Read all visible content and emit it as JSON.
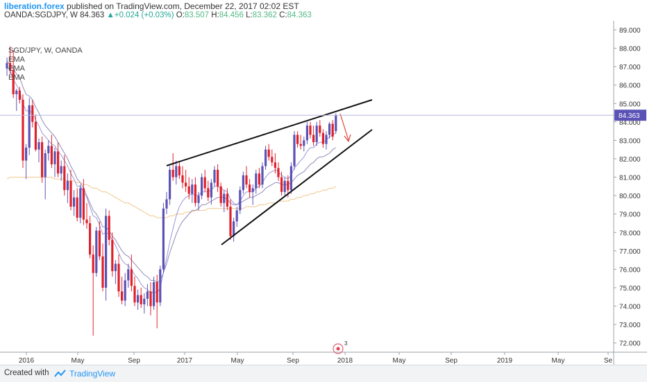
{
  "header": {
    "author": "liberation.forex",
    "published": "published on TradingView.com, December 22, 2017 02:02 EST",
    "symbol": "OANDA:SGDJPY, W",
    "last": "84.363",
    "change": "+0.024 (+0.03%)",
    "o_label": "O:",
    "o": "83.507",
    "h_label": "H:",
    "h": "84.456",
    "l_label": "L:",
    "l": "83.362",
    "c_label": "C:",
    "c": "84.363"
  },
  "legend": {
    "title": "SGD/JPY, W, OANDA",
    "ema1": "EMA",
    "ema2": "EMA",
    "ema3": "EMA"
  },
  "footer": {
    "created_with": "Created with",
    "brand": "TradingView"
  },
  "colors": {
    "up": "#5b52b5",
    "down": "#e0202a",
    "ema_fast": "#9a97d6",
    "ema_mid": "#8e8ab8",
    "ema_slow": "#f0c68a",
    "last_price_bg": "#5b52b5",
    "arrow": "#e0403a"
  },
  "chart_data": {
    "type": "candlestick",
    "yticks": [
      "72.000",
      "73.000",
      "74.000",
      "75.000",
      "76.000",
      "77.000",
      "78.000",
      "79.000",
      "80.000",
      "81.000",
      "82.000",
      "83.000",
      "84.000",
      "85.000",
      "86.000",
      "87.000",
      "88.000",
      "89.000"
    ],
    "xticks": [
      "2016",
      "May",
      "Sep",
      "2017",
      "May",
      "Sep",
      "2018",
      "May",
      "Sep",
      "2019",
      "May",
      "Se"
    ],
    "ylim": [
      71.5,
      89.3
    ],
    "last_price_label": "84.363",
    "annotation_badge": "3",
    "candles": [
      [
        86.9,
        87.5,
        86.5,
        87.2
      ],
      [
        87.2,
        88.1,
        86.6,
        86.8
      ],
      [
        86.8,
        87.9,
        85.3,
        85.5
      ],
      [
        85.5,
        85.8,
        84.6,
        85.7
      ],
      [
        85.7,
        85.9,
        85.0,
        85.2
      ],
      [
        85.2,
        85.5,
        81.5,
        81.9
      ],
      [
        81.9,
        82.8,
        80.9,
        82.6
      ],
      [
        82.6,
        85.3,
        82.2,
        84.9
      ],
      [
        84.9,
        85.2,
        83.7,
        84.0
      ],
      [
        84.0,
        84.4,
        82.4,
        82.5
      ],
      [
        82.5,
        83.1,
        81.8,
        82.9
      ],
      [
        82.9,
        83.2,
        80.7,
        81.0
      ],
      [
        81.0,
        82.5,
        79.8,
        82.3
      ],
      [
        82.3,
        83.0,
        81.9,
        82.7
      ],
      [
        82.7,
        83.3,
        81.5,
        81.7
      ],
      [
        81.7,
        82.6,
        81.0,
        82.4
      ],
      [
        82.4,
        82.9,
        81.0,
        81.2
      ],
      [
        81.2,
        81.9,
        80.8,
        81.6
      ],
      [
        81.6,
        82.2,
        80.0,
        80.3
      ],
      [
        80.3,
        81.2,
        79.6,
        80.8
      ],
      [
        80.8,
        81.4,
        79.2,
        79.4
      ],
      [
        79.4,
        80.3,
        78.9,
        79.9
      ],
      [
        79.9,
        80.4,
        78.6,
        78.8
      ],
      [
        78.8,
        80.6,
        78.5,
        80.4
      ],
      [
        80.4,
        80.9,
        78.4,
        78.7
      ],
      [
        78.7,
        79.6,
        78.2,
        78.5
      ],
      [
        78.5,
        78.9,
        76.6,
        76.8
      ],
      [
        76.8,
        77.3,
        72.4,
        75.8
      ],
      [
        75.8,
        78.3,
        75.6,
        78.1
      ],
      [
        78.1,
        78.6,
        76.5,
        76.7
      ],
      [
        76.7,
        77.4,
        74.8,
        75.0
      ],
      [
        75.0,
        79.3,
        74.3,
        78.9
      ],
      [
        78.9,
        79.2,
        77.3,
        77.6
      ],
      [
        77.6,
        78.0,
        75.6,
        75.9
      ],
      [
        75.9,
        76.5,
        75.2,
        76.3
      ],
      [
        76.3,
        76.8,
        74.5,
        74.8
      ],
      [
        74.8,
        75.6,
        74.1,
        74.3
      ],
      [
        74.3,
        75.8,
        74.0,
        75.4
      ],
      [
        75.4,
        76.3,
        75.0,
        76.0
      ],
      [
        76.0,
        76.8,
        74.8,
        75.1
      ],
      [
        75.1,
        75.6,
        74.0,
        74.2
      ],
      [
        74.2,
        74.9,
        73.8,
        74.6
      ],
      [
        74.6,
        75.0,
        73.9,
        74.1
      ],
      [
        74.1,
        74.7,
        73.6,
        74.4
      ],
      [
        74.4,
        75.2,
        74.0,
        74.8
      ],
      [
        74.8,
        75.3,
        73.5,
        74.0
      ],
      [
        74.0,
        75.6,
        73.8,
        75.3
      ],
      [
        75.3,
        75.7,
        72.8,
        74.2
      ],
      [
        74.2,
        76.2,
        74.0,
        76.0
      ],
      [
        76.0,
        79.6,
        75.8,
        79.3
      ],
      [
        79.3,
        80.2,
        79.0,
        79.8
      ],
      [
        79.8,
        81.6,
        79.5,
        81.4
      ],
      [
        81.4,
        82.3,
        80.8,
        81.0
      ],
      [
        81.0,
        81.9,
        80.6,
        81.6
      ],
      [
        81.6,
        81.8,
        80.9,
        81.1
      ],
      [
        81.1,
        81.6,
        80.4,
        80.7
      ],
      [
        80.7,
        81.4,
        80.2,
        80.5
      ],
      [
        80.5,
        81.0,
        79.8,
        80.1
      ],
      [
        80.1,
        80.9,
        79.6,
        80.6
      ],
      [
        80.6,
        81.0,
        79.4,
        79.6
      ],
      [
        79.6,
        80.2,
        79.2,
        80.0
      ],
      [
        80.0,
        81.2,
        79.8,
        81.0
      ],
      [
        81.0,
        81.4,
        80.2,
        80.4
      ],
      [
        80.4,
        80.8,
        79.7,
        79.9
      ],
      [
        79.9,
        80.9,
        79.5,
        80.7
      ],
      [
        80.7,
        81.6,
        80.5,
        81.4
      ],
      [
        81.4,
        81.7,
        80.2,
        80.5
      ],
      [
        80.5,
        80.7,
        79.4,
        79.6
      ],
      [
        79.6,
        80.3,
        79.1,
        80.1
      ],
      [
        80.1,
        80.4,
        79.2,
        79.4
      ],
      [
        79.4,
        79.8,
        77.6,
        77.8
      ],
      [
        77.8,
        78.8,
        77.5,
        78.6
      ],
      [
        78.6,
        79.4,
        78.3,
        79.2
      ],
      [
        79.2,
        80.5,
        79.0,
        80.3
      ],
      [
        80.3,
        81.3,
        80.1,
        81.1
      ],
      [
        81.1,
        81.6,
        80.4,
        80.6
      ],
      [
        80.6,
        80.9,
        79.9,
        80.2
      ],
      [
        80.2,
        80.6,
        79.5,
        80.4
      ],
      [
        80.4,
        81.4,
        80.1,
        81.2
      ],
      [
        81.2,
        81.5,
        80.4,
        80.6
      ],
      [
        80.6,
        81.8,
        80.4,
        81.6
      ],
      [
        81.6,
        82.7,
        81.4,
        82.5
      ],
      [
        82.5,
        82.8,
        81.9,
        82.1
      ],
      [
        82.1,
        82.5,
        81.6,
        81.8
      ],
      [
        81.8,
        82.3,
        81.2,
        81.5
      ],
      [
        81.5,
        81.8,
        80.8,
        81.0
      ],
      [
        81.0,
        81.3,
        80.0,
        80.2
      ],
      [
        80.2,
        81.0,
        80.0,
        80.8
      ],
      [
        80.8,
        81.1,
        79.9,
        80.3
      ],
      [
        80.3,
        81.8,
        80.1,
        81.6
      ],
      [
        81.6,
        83.5,
        81.4,
        83.3
      ],
      [
        83.3,
        83.5,
        82.6,
        82.8
      ],
      [
        82.8,
        83.3,
        82.5,
        82.7
      ],
      [
        82.7,
        83.2,
        82.4,
        83.0
      ],
      [
        83.0,
        84.0,
        82.8,
        83.8
      ],
      [
        83.8,
        84.0,
        83.1,
        83.3
      ],
      [
        83.3,
        83.8,
        82.7,
        82.9
      ],
      [
        82.9,
        84.0,
        82.7,
        83.8
      ],
      [
        83.8,
        84.1,
        83.2,
        83.4
      ],
      [
        83.4,
        83.6,
        82.6,
        82.8
      ],
      [
        82.8,
        83.5,
        82.5,
        83.3
      ],
      [
        83.3,
        84.0,
        83.1,
        83.9
      ],
      [
        83.9,
        84.1,
        83.0,
        83.2
      ],
      [
        83.5,
        84.46,
        83.36,
        84.36
      ]
    ],
    "ema_fast": [
      87.0,
      86.8,
      86.3,
      86.0,
      85.7,
      85.0,
      84.6,
      84.6,
      84.5,
      84.1,
      83.8,
      83.4,
      83.2,
      83.0,
      82.8,
      82.7,
      82.4,
      82.2,
      81.9,
      81.6,
      81.2,
      80.9,
      80.5,
      80.5,
      80.2,
      79.9,
      79.4,
      78.9,
      78.8,
      78.4,
      77.9,
      78.0,
      77.9,
      77.6,
      77.3,
      76.9,
      76.5,
      76.3,
      76.2,
      76.0,
      75.7,
      75.5,
      75.2,
      75.0,
      74.9,
      74.7,
      74.8,
      74.7,
      75.0,
      75.8,
      76.6,
      77.5,
      78.2,
      78.9,
      79.4,
      79.7,
      79.9,
      80.0,
      80.1,
      80.0,
      80.0,
      80.2,
      80.2,
      80.2,
      80.3,
      80.5,
      80.5,
      80.4,
      80.3,
      80.2,
      79.8,
      79.6,
      79.5,
      79.7,
      80.0,
      80.2,
      80.2,
      80.2,
      80.4,
      80.5,
      80.7,
      81.0,
      81.2,
      81.3,
      81.4,
      81.3,
      81.1,
      81.0,
      80.9,
      81.1,
      81.5,
      81.7,
      81.9,
      82.1,
      82.4,
      82.6,
      82.6,
      82.8,
      82.9,
      82.9,
      83.0,
      83.2,
      83.3,
      83.4
    ],
    "ema_mid": [
      87.3,
      87.1,
      86.9,
      86.6,
      86.4,
      85.9,
      85.5,
      85.4,
      85.2,
      84.8,
      84.5,
      84.1,
      83.8,
      83.6,
      83.4,
      83.2,
      82.9,
      82.6,
      82.3,
      82.0,
      81.6,
      81.3,
      80.9,
      80.7,
      80.4,
      80.0,
      79.6,
      79.2,
      79.0,
      78.7,
      78.3,
      78.3,
      78.1,
      77.8,
      77.6,
      77.3,
      77.0,
      76.8,
      76.7,
      76.5,
      76.3,
      76.1,
      75.9,
      75.7,
      75.6,
      75.4,
      75.4,
      75.3,
      75.4,
      75.8,
      76.3,
      76.9,
      77.4,
      77.9,
      78.3,
      78.6,
      78.8,
      79.0,
      79.2,
      79.2,
      79.3,
      79.5,
      79.5,
      79.6,
      79.7,
      79.8,
      79.9,
      79.9,
      79.9,
      79.8,
      79.6,
      79.5,
      79.5,
      79.6,
      79.7,
      79.8,
      79.9,
      79.9,
      80.0,
      80.1,
      80.2,
      80.4,
      80.5,
      80.6,
      80.7,
      80.7,
      80.6,
      80.6,
      80.6,
      80.7,
      80.9,
      81.1,
      81.2,
      81.3,
      81.5,
      81.7,
      81.8,
      82.0,
      82.1,
      82.1,
      82.2,
      82.3,
      82.5,
      82.6
    ],
    "ema_slow": [
      80.9,
      81.0,
      81.0,
      81.0,
      81.0,
      81.0,
      81.0,
      81.0,
      81.0,
      81.0,
      81.0,
      81.0,
      81.0,
      81.0,
      81.0,
      80.9,
      80.9,
      80.9,
      80.9,
      80.8,
      80.8,
      80.8,
      80.7,
      80.7,
      80.6,
      80.6,
      80.5,
      80.4,
      80.4,
      80.3,
      80.2,
      80.2,
      80.1,
      80.0,
      79.9,
      79.8,
      79.7,
      79.6,
      79.6,
      79.5,
      79.4,
      79.3,
      79.2,
      79.1,
      79.0,
      78.9,
      78.9,
      78.8,
      78.8,
      78.8,
      78.8,
      78.9,
      78.9,
      79.0,
      79.0,
      79.0,
      79.1,
      79.1,
      79.1,
      79.2,
      79.2,
      79.2,
      79.2,
      79.3,
      79.3,
      79.3,
      79.3,
      79.3,
      79.3,
      79.3,
      79.3,
      79.3,
      79.3,
      79.3,
      79.3,
      79.4,
      79.4,
      79.4,
      79.4,
      79.5,
      79.5,
      79.5,
      79.6,
      79.6,
      79.6,
      79.7,
      79.7,
      79.7,
      79.7,
      79.8,
      79.8,
      79.9,
      79.9,
      80.0,
      80.0,
      80.1,
      80.1,
      80.2,
      80.2,
      80.3,
      80.3,
      80.4,
      80.4,
      80.5
    ]
  }
}
